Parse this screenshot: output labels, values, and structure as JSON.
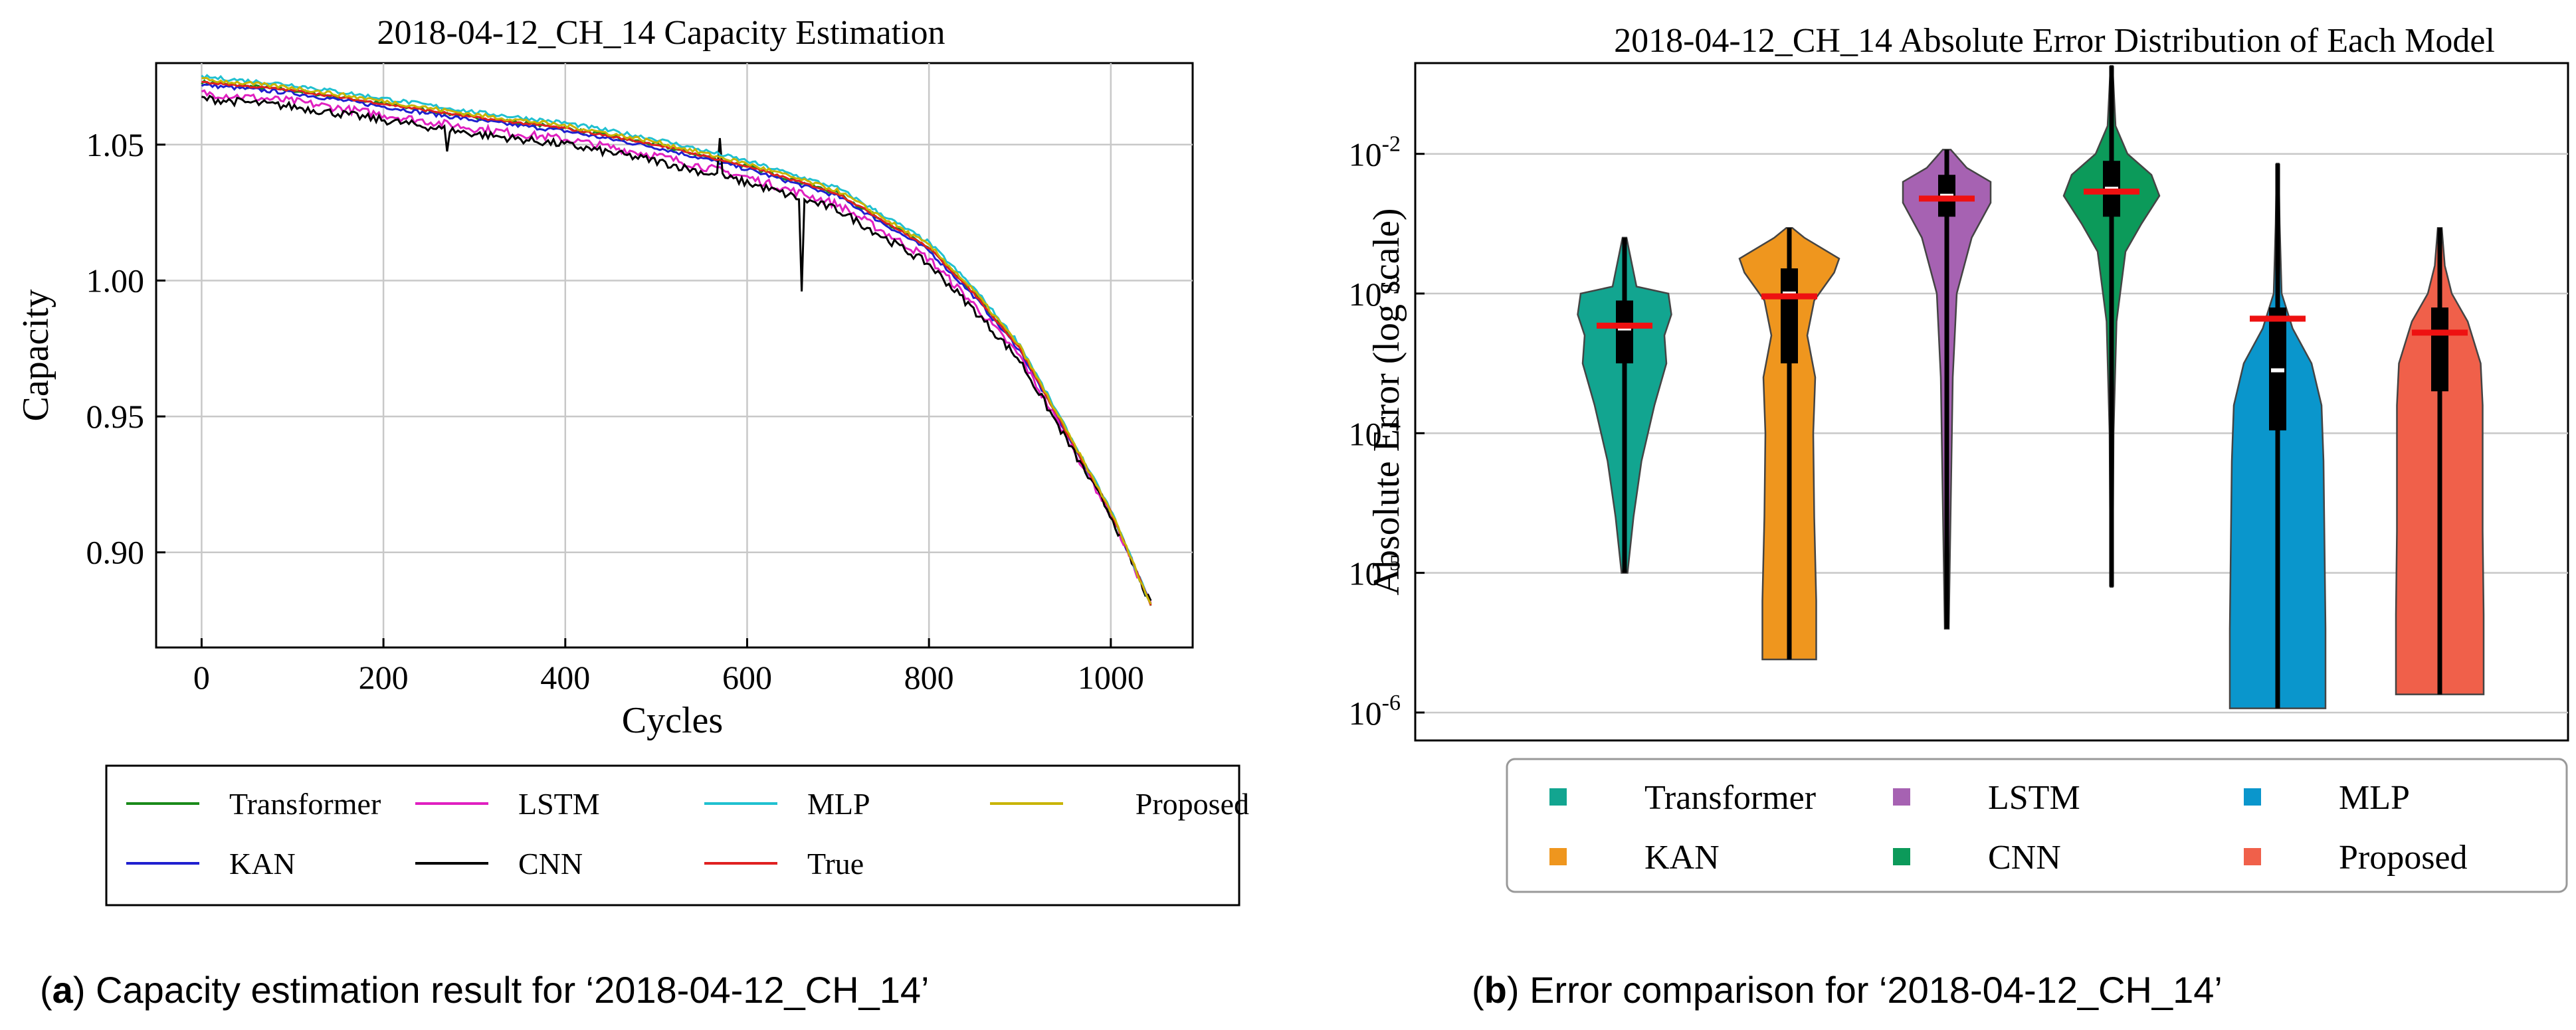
{
  "chart_data": [
    {
      "type": "line",
      "title": "2018-04-12_CH_14 Capacity Estimation",
      "xlabel": "Cycles",
      "ylabel": "Capacity",
      "xlim": [
        -50,
        1090
      ],
      "ylim": [
        0.865,
        1.08
      ],
      "xticks": [
        0,
        200,
        400,
        600,
        800,
        1000
      ],
      "yticks": [
        0.9,
        0.95,
        1.0,
        1.05
      ],
      "ytick_labels": [
        "0.90",
        "0.95",
        "1.00",
        "1.05"
      ],
      "grid": true,
      "series": [
        {
          "name": "Transformer",
          "color": "#1a8a1a",
          "offset": 0.0
        },
        {
          "name": "KAN",
          "color": "#1f1fcf",
          "offset": -0.001
        },
        {
          "name": "LSTM",
          "color": "#e020c0",
          "offset": -0.004
        },
        {
          "name": "CNN",
          "color": "#000000",
          "offset": -0.006
        },
        {
          "name": "MLP",
          "color": "#20c0d0",
          "offset": 0.002
        },
        {
          "name": "True",
          "color": "#e02020",
          "offset": 0.0
        },
        {
          "name": "Proposed",
          "color": "#c8b400",
          "offset": 0.001
        }
      ],
      "base_curve": {
        "x": [
          0,
          100,
          200,
          300,
          400,
          500,
          600,
          700,
          800,
          850,
          900,
          950,
          1000,
          1045
        ],
        "y": [
          1.073,
          1.07,
          1.065,
          1.06,
          1.056,
          1.05,
          1.042,
          1.032,
          1.012,
          0.995,
          0.975,
          0.945,
          0.915,
          0.88
        ]
      },
      "legend": {
        "placement": "bottom",
        "columns": 4,
        "entries": [
          "Transformer",
          "LSTM",
          "MLP",
          "Proposed",
          "KAN",
          "CNN",
          "True"
        ]
      },
      "caption": {
        "bold": "a",
        "rest": ") Capacity estimation result for ‘2018-04-12_CH_14’",
        "open": "("
      }
    },
    {
      "type": "violin",
      "title": "2018-04-12_CH_14 Absolute Error Distribution of Each Model",
      "ylabel": "Absolute Error (log scale)",
      "yscale": "log",
      "ylim_log10": [
        -6.2,
        -1.35
      ],
      "ytick_exponents": [
        -6,
        -5,
        -4,
        -3,
        -2
      ],
      "tick_base": "10",
      "grid": true,
      "violins": [
        {
          "name": "Transformer",
          "color": "#12a590",
          "min_log": -5.0,
          "max_log": -2.6,
          "q1_log": -3.5,
          "q3_log": -3.05,
          "median_log": -3.25,
          "mean_log": -3.23,
          "profile": [
            [
              -5.0,
              0.03
            ],
            [
              -4.6,
              0.09
            ],
            [
              -4.2,
              0.17
            ],
            [
              -3.8,
              0.3
            ],
            [
              -3.5,
              0.42
            ],
            [
              -3.3,
              0.4
            ],
            [
              -3.15,
              0.47
            ],
            [
              -3.0,
              0.44
            ],
            [
              -2.95,
              0.12
            ],
            [
              -2.6,
              0.02
            ]
          ]
        },
        {
          "name": "KAN",
          "color": "#ef961e",
          "min_log": -5.62,
          "max_log": -2.53,
          "q1_log": -3.5,
          "q3_log": -2.82,
          "median_log": -3.0,
          "mean_log": -3.02,
          "profile": [
            [
              -5.62,
              0.27
            ],
            [
              -5.2,
              0.27
            ],
            [
              -4.6,
              0.25
            ],
            [
              -4.0,
              0.24
            ],
            [
              -3.6,
              0.26
            ],
            [
              -3.3,
              0.18
            ],
            [
              -3.05,
              0.25
            ],
            [
              -2.85,
              0.45
            ],
            [
              -2.75,
              0.5
            ],
            [
              -2.6,
              0.15
            ],
            [
              -2.53,
              0.03
            ]
          ]
        },
        {
          "name": "LSTM",
          "color": "#a662b2",
          "min_log": -5.4,
          "max_log": -1.97,
          "q1_log": -2.45,
          "q3_log": -2.15,
          "median_log": -2.3,
          "mean_log": -2.32,
          "profile": [
            [
              -5.4,
              0.02
            ],
            [
              -4.5,
              0.04
            ],
            [
              -3.6,
              0.06
            ],
            [
              -3.0,
              0.1
            ],
            [
              -2.6,
              0.25
            ],
            [
              -2.35,
              0.44
            ],
            [
              -2.2,
              0.44
            ],
            [
              -2.1,
              0.2
            ],
            [
              -1.97,
              0.04
            ]
          ]
        },
        {
          "name": "CNN",
          "color": "#0c9a5a",
          "min_log": -5.1,
          "max_log": -1.37,
          "q1_log": -2.45,
          "q3_log": -2.05,
          "median_log": -2.25,
          "mean_log": -2.27,
          "profile": [
            [
              -5.1,
              0.01
            ],
            [
              -4.0,
              0.02
            ],
            [
              -3.2,
              0.05
            ],
            [
              -2.7,
              0.14
            ],
            [
              -2.5,
              0.3
            ],
            [
              -2.3,
              0.48
            ],
            [
              -2.15,
              0.4
            ],
            [
              -2.0,
              0.16
            ],
            [
              -1.8,
              0.04
            ],
            [
              -1.37,
              0.01
            ]
          ]
        },
        {
          "name": "MLP",
          "color": "#0a96cc",
          "min_log": -5.97,
          "max_log": -2.07,
          "q1_log": -3.98,
          "q3_log": -3.1,
          "median_log": -3.55,
          "mean_log": -3.18,
          "profile": [
            [
              -5.97,
              0.48
            ],
            [
              -5.4,
              0.48
            ],
            [
              -4.8,
              0.47
            ],
            [
              -4.2,
              0.46
            ],
            [
              -3.8,
              0.44
            ],
            [
              -3.5,
              0.34
            ],
            [
              -3.25,
              0.15
            ],
            [
              -3.0,
              0.04
            ],
            [
              -2.5,
              0.02
            ],
            [
              -2.07,
              0.01
            ]
          ]
        },
        {
          "name": "Proposed",
          "color": "#f0604a",
          "min_log": -5.87,
          "max_log": -2.53,
          "q1_log": -3.7,
          "q3_log": -3.1,
          "median_log": -3.28,
          "mean_log": -3.28,
          "profile": [
            [
              -5.87,
              0.44
            ],
            [
              -5.3,
              0.44
            ],
            [
              -4.7,
              0.43
            ],
            [
              -4.2,
              0.43
            ],
            [
              -3.8,
              0.43
            ],
            [
              -3.5,
              0.41
            ],
            [
              -3.2,
              0.28
            ],
            [
              -3.0,
              0.12
            ],
            [
              -2.8,
              0.05
            ],
            [
              -2.53,
              0.02
            ]
          ]
        }
      ],
      "legend": {
        "placement": "bottom",
        "columns": 3,
        "entries": [
          "Transformer",
          "LSTM",
          "MLP",
          "KAN",
          "CNN",
          "Proposed"
        ]
      },
      "caption": {
        "bold": "b",
        "rest": ") Error comparison for ‘2018-04-12_CH_14’",
        "open": "("
      }
    }
  ]
}
